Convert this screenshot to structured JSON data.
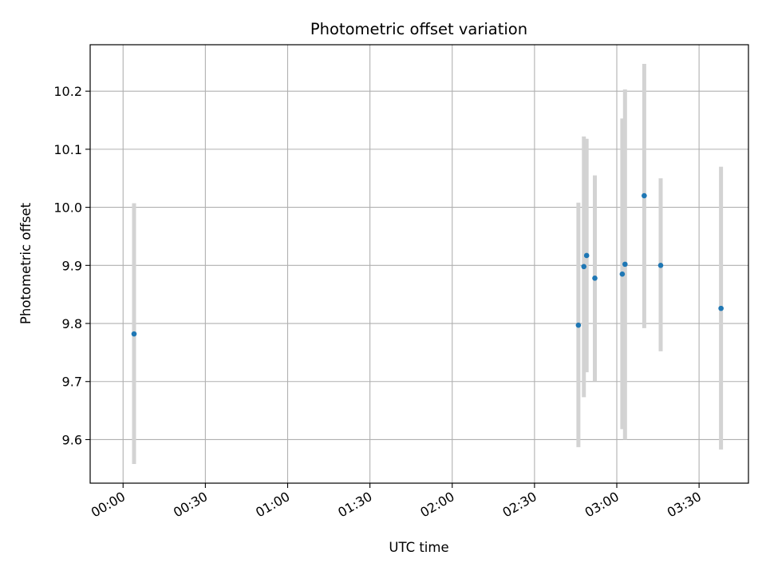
{
  "chart_data": {
    "type": "scatter",
    "title": "Photometric offset variation",
    "xlabel": "UTC time",
    "ylabel": "Photometric offset",
    "x_unit": "UTC time (HH:MM)",
    "xlim": [
      "23:48",
      "03:48"
    ],
    "ylim": [
      9.525,
      10.28
    ],
    "grid": true,
    "x_ticks": [
      "00:00",
      "00:30",
      "01:00",
      "01:30",
      "02:00",
      "02:30",
      "03:00",
      "03:30"
    ],
    "y_ticks": [
      "9.6",
      "9.7",
      "9.8",
      "9.9",
      "10.0",
      "10.1",
      "10.2"
    ],
    "colors": {
      "point": "#1f77b4",
      "errorbar": "#d3d3d3",
      "grid": "#b0b0b0"
    },
    "points": [
      {
        "x": "00:04",
        "y": 9.782,
        "err_low": 9.558,
        "err_high": 10.007
      },
      {
        "x": "02:46",
        "y": 9.797,
        "err_low": 9.587,
        "err_high": 10.008
      },
      {
        "x": "02:48",
        "y": 9.898,
        "err_low": 9.673,
        "err_high": 10.122
      },
      {
        "x": "02:49",
        "y": 9.917,
        "err_low": 9.716,
        "err_high": 10.118
      },
      {
        "x": "02:52",
        "y": 9.878,
        "err_low": 9.701,
        "err_high": 10.055
      },
      {
        "x": "03:02",
        "y": 9.885,
        "err_low": 9.618,
        "err_high": 10.153
      },
      {
        "x": "03:03",
        "y": 9.902,
        "err_low": 9.6,
        "err_high": 10.203
      },
      {
        "x": "03:10",
        "y": 10.02,
        "err_low": 9.792,
        "err_high": 10.247
      },
      {
        "x": "03:16",
        "y": 9.9,
        "err_low": 9.752,
        "err_high": 10.05
      },
      {
        "x": "03:38",
        "y": 9.826,
        "err_low": 9.583,
        "err_high": 10.07
      }
    ]
  }
}
